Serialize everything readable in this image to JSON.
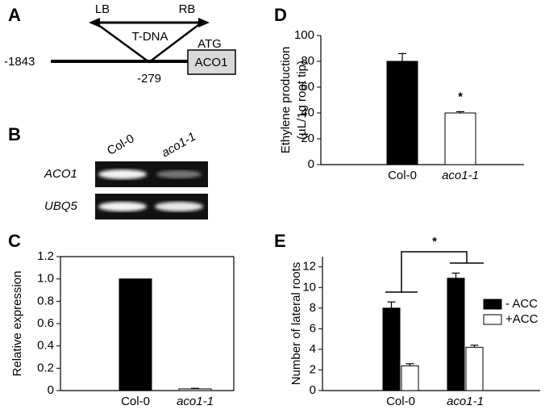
{
  "panel_a": {
    "label": "A",
    "lb": "LB",
    "rb": "RB",
    "tdna": "T-DNA",
    "atg": "ATG",
    "start": "-1843",
    "insertion": "-279",
    "gene": "ACO1"
  },
  "panel_b": {
    "label": "B",
    "lanes": [
      "Col-0",
      "aco1-1"
    ],
    "rows": [
      "ACO1",
      "UBQ5"
    ]
  },
  "chart_data": [
    {
      "type": "bar",
      "label": "C",
      "ylabel": [
        "Relative expression"
      ],
      "categories": [
        "Col-0",
        "aco1-1"
      ],
      "values": [
        1.0,
        0.015
      ],
      "errors": [
        0,
        0.005
      ],
      "colors": [
        "#000000",
        "#ffffff"
      ],
      "ylim": [
        0,
        1.2
      ],
      "yticks": [
        0,
        0.2,
        0.4,
        0.6,
        0.8,
        {
          "value": 1,
          "label": "1.0"
        },
        1.2
      ]
    },
    {
      "type": "bar",
      "label": "D",
      "ylabel": [
        "Ethylene production",
        "(µL/1g root tip)"
      ],
      "categories": [
        "Col-0",
        "aco1-1"
      ],
      "values": [
        80,
        40
      ],
      "errors": [
        6,
        1
      ],
      "colors": [
        "#000000",
        "#ffffff"
      ],
      "annotation": "*",
      "ylim": [
        0,
        100
      ],
      "yticks": [
        0,
        20,
        40,
        60,
        80,
        100
      ]
    },
    {
      "type": "grouped_bar",
      "label": "E",
      "ylabel": [
        "Number of lateral roots"
      ],
      "categories": [
        "Col-0",
        "aco1-1"
      ],
      "series": [
        {
          "name": "- ACC",
          "color": "#000000",
          "values": [
            8.0,
            10.9
          ],
          "errors": [
            0.6,
            0.5
          ]
        },
        {
          "name": "+ACC",
          "color": "#ffffff",
          "values": [
            2.4,
            4.2
          ],
          "errors": [
            0.2,
            0.2
          ]
        }
      ],
      "annotation": "*",
      "legend": "right",
      "ylim": [
        0,
        13
      ],
      "yticks": [
        0,
        2,
        4,
        6,
        8,
        10,
        12
      ]
    }
  ]
}
